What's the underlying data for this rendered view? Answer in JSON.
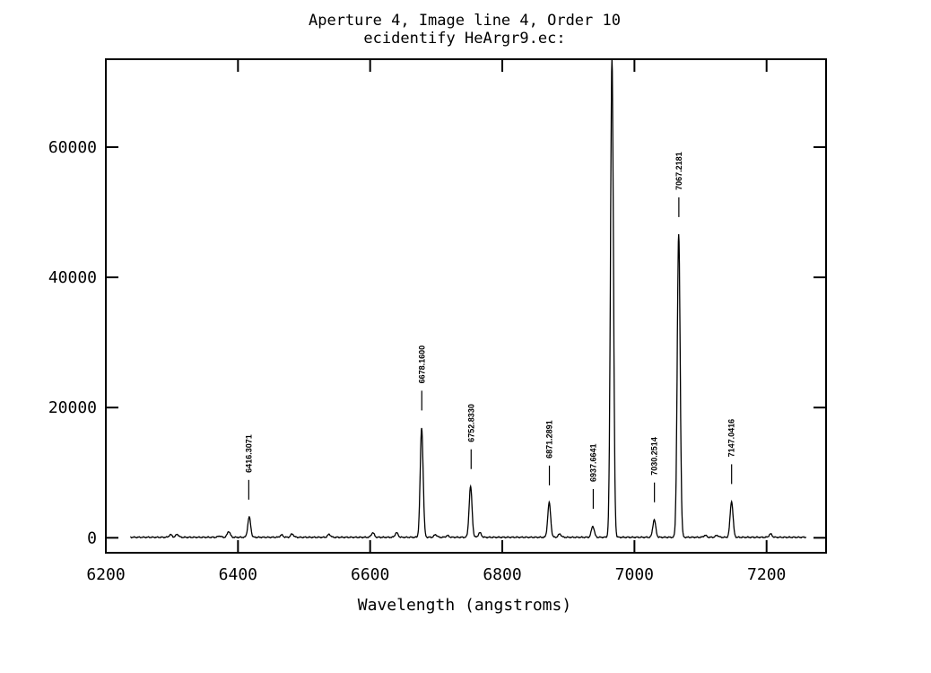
{
  "chart_data": {
    "type": "line",
    "title": "Aperture 4, Image line 4, Order 10",
    "subtitle": "ecidentify HeArgr9.ec:",
    "xlabel": "Wavelength (angstroms)",
    "ylabel": "",
    "xlim": [
      6200,
      7290
    ],
    "ylim": [
      -2300,
      73500
    ],
    "x_ticks": [
      6200,
      6400,
      6600,
      6800,
      7000,
      7200
    ],
    "y_ticks": [
      0,
      20000,
      40000,
      60000
    ],
    "x_tick_labels": [
      "6200",
      "6400",
      "6600",
      "6800",
      "7000",
      "7200"
    ],
    "y_tick_labels": [
      "0",
      "20000",
      "40000",
      "60000"
    ],
    "grid": false,
    "series": [
      {
        "color": "#000000",
        "x_range": [
          6237,
          7260
        ],
        "baseline": 80,
        "peaks": [
          {
            "x": 6298,
            "y": 400
          },
          {
            "x": 6308,
            "y": 450
          },
          {
            "x": 6372,
            "y": 200
          },
          {
            "x": 6386,
            "y": 900
          },
          {
            "x": 6417,
            "y": 3100
          },
          {
            "x": 6466,
            "y": 350
          },
          {
            "x": 6482,
            "y": 500
          },
          {
            "x": 6538,
            "y": 450
          },
          {
            "x": 6604,
            "y": 700
          },
          {
            "x": 6640,
            "y": 700
          },
          {
            "x": 6678,
            "y": 16800
          },
          {
            "x": 6699,
            "y": 400
          },
          {
            "x": 6717,
            "y": 250
          },
          {
            "x": 6752,
            "y": 7800
          },
          {
            "x": 6766,
            "y": 700
          },
          {
            "x": 6871,
            "y": 5300
          },
          {
            "x": 6887,
            "y": 500
          },
          {
            "x": 6937,
            "y": 1700
          },
          {
            "x": 6966,
            "y": 73500
          },
          {
            "x": 7030,
            "y": 2700
          },
          {
            "x": 7067,
            "y": 46500
          },
          {
            "x": 7107,
            "y": 300
          },
          {
            "x": 7125,
            "y": 300
          },
          {
            "x": 7147,
            "y": 5500
          },
          {
            "x": 7206,
            "y": 500
          }
        ]
      }
    ],
    "line_identifications": [
      {
        "wavelength": 6416.3071,
        "label": "6416.3071",
        "peak": 3100
      },
      {
        "wavelength": 6678.16,
        "label": "6678.1600",
        "peak": 16800
      },
      {
        "wavelength": 6752.833,
        "label": "6752.8330",
        "peak": 7800
      },
      {
        "wavelength": 6871.2891,
        "label": "6871.2891",
        "peak": 5300
      },
      {
        "wavelength": 6937.6641,
        "label": "6937.6641",
        "peak": 1700
      },
      {
        "wavelength": 7030.2514,
        "label": "7030.2514",
        "peak": 2700
      },
      {
        "wavelength": 7067.2181,
        "label": "7067.2181",
        "peak": 46500
      },
      {
        "wavelength": 7147.0416,
        "label": "7147.0416",
        "peak": 5500
      }
    ]
  }
}
